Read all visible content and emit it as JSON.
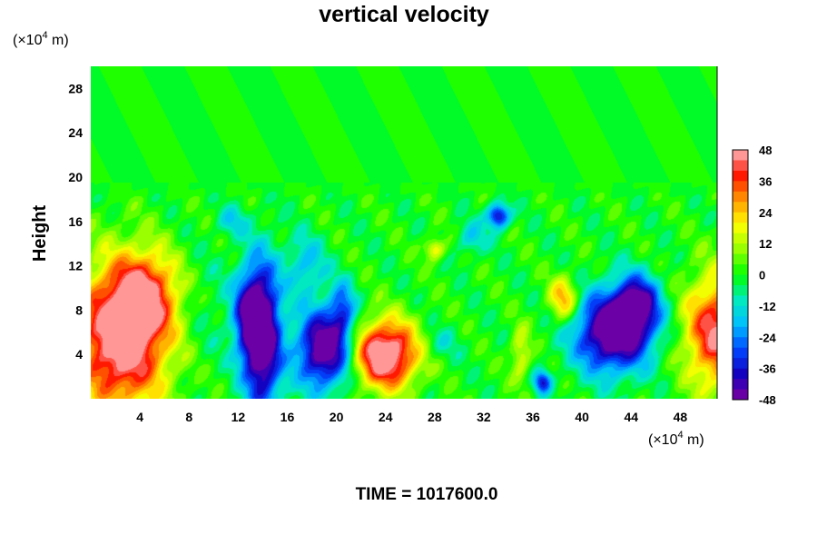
{
  "chart_data": {
    "type": "heatmap",
    "title": "vertical velocity",
    "ylabel": "Height",
    "x_unit_prefix": "(×10",
    "unit_exponent": "4",
    "unit_suffix": " m)",
    "xlim": [
      0,
      51
    ],
    "ylim": [
      0,
      30
    ],
    "x_ticks": [
      4,
      8,
      12,
      16,
      20,
      24,
      28,
      32,
      36,
      40,
      44,
      48
    ],
    "y_ticks": [
      4,
      8,
      12,
      16,
      20,
      24,
      28
    ],
    "colorbar": {
      "ticks": [
        48,
        36,
        24,
        12,
        0,
        -12,
        -24,
        -36,
        -48
      ],
      "range": [
        -48,
        48
      ],
      "levels": 24
    },
    "features": [
      {
        "x": 2.5,
        "y": 5.5,
        "rx": 3.8,
        "ry": 6.5,
        "v": 55
      },
      {
        "x": 4.5,
        "y": 9.5,
        "rx": 2.5,
        "ry": 3.5,
        "v": 30
      },
      {
        "x": 14.0,
        "y": 5.5,
        "rx": 1.5,
        "ry": 6.5,
        "v": -58
      },
      {
        "x": 12.8,
        "y": 7.5,
        "rx": 1.3,
        "ry": 4.0,
        "v": -32
      },
      {
        "x": 19.0,
        "y": 4.5,
        "rx": 2.2,
        "ry": 3.5,
        "v": -55
      },
      {
        "x": 20.5,
        "y": 8.0,
        "rx": 1.0,
        "ry": 2.5,
        "v": -25
      },
      {
        "x": 24.0,
        "y": 4.0,
        "rx": 2.6,
        "ry": 3.0,
        "v": 58
      },
      {
        "x": 42.5,
        "y": 6.0,
        "rx": 3.0,
        "ry": 3.5,
        "v": -58
      },
      {
        "x": 44.5,
        "y": 8.5,
        "rx": 1.8,
        "ry": 2.6,
        "v": -42
      },
      {
        "x": 38.5,
        "y": 9.0,
        "rx": 1.2,
        "ry": 2.0,
        "v": 28
      },
      {
        "x": 51.0,
        "y": 6.0,
        "rx": 2.6,
        "ry": 5.0,
        "v": 45
      },
      {
        "x": 33.2,
        "y": 16.5,
        "rx": 0.9,
        "ry": 1.1,
        "v": -42
      },
      {
        "x": 28.0,
        "y": 13.5,
        "rx": 0.8,
        "ry": 1.0,
        "v": 22
      },
      {
        "x": 31.0,
        "y": 14.5,
        "rx": 1.2,
        "ry": 1.5,
        "v": -15
      },
      {
        "x": 36.8,
        "y": 1.5,
        "rx": 0.7,
        "ry": 1.0,
        "v": -35
      },
      {
        "x": 35.0,
        "y": 4.0,
        "rx": 0.8,
        "ry": 2.5,
        "v": 18
      },
      {
        "x": 17.5,
        "y": 12.0,
        "rx": 1.6,
        "ry": 2.6,
        "v": -18
      },
      {
        "x": 11.5,
        "y": 16.0,
        "rx": 1.2,
        "ry": 1.3,
        "v": -14
      },
      {
        "x": 28.5,
        "y": 5.0,
        "rx": 1.5,
        "ry": 1.5,
        "v": -10
      },
      {
        "x": 9.5,
        "y": 8.0,
        "rx": 2.0,
        "ry": 5.0,
        "v": -5
      }
    ]
  },
  "footer_label": "TIME = 1017600.0"
}
